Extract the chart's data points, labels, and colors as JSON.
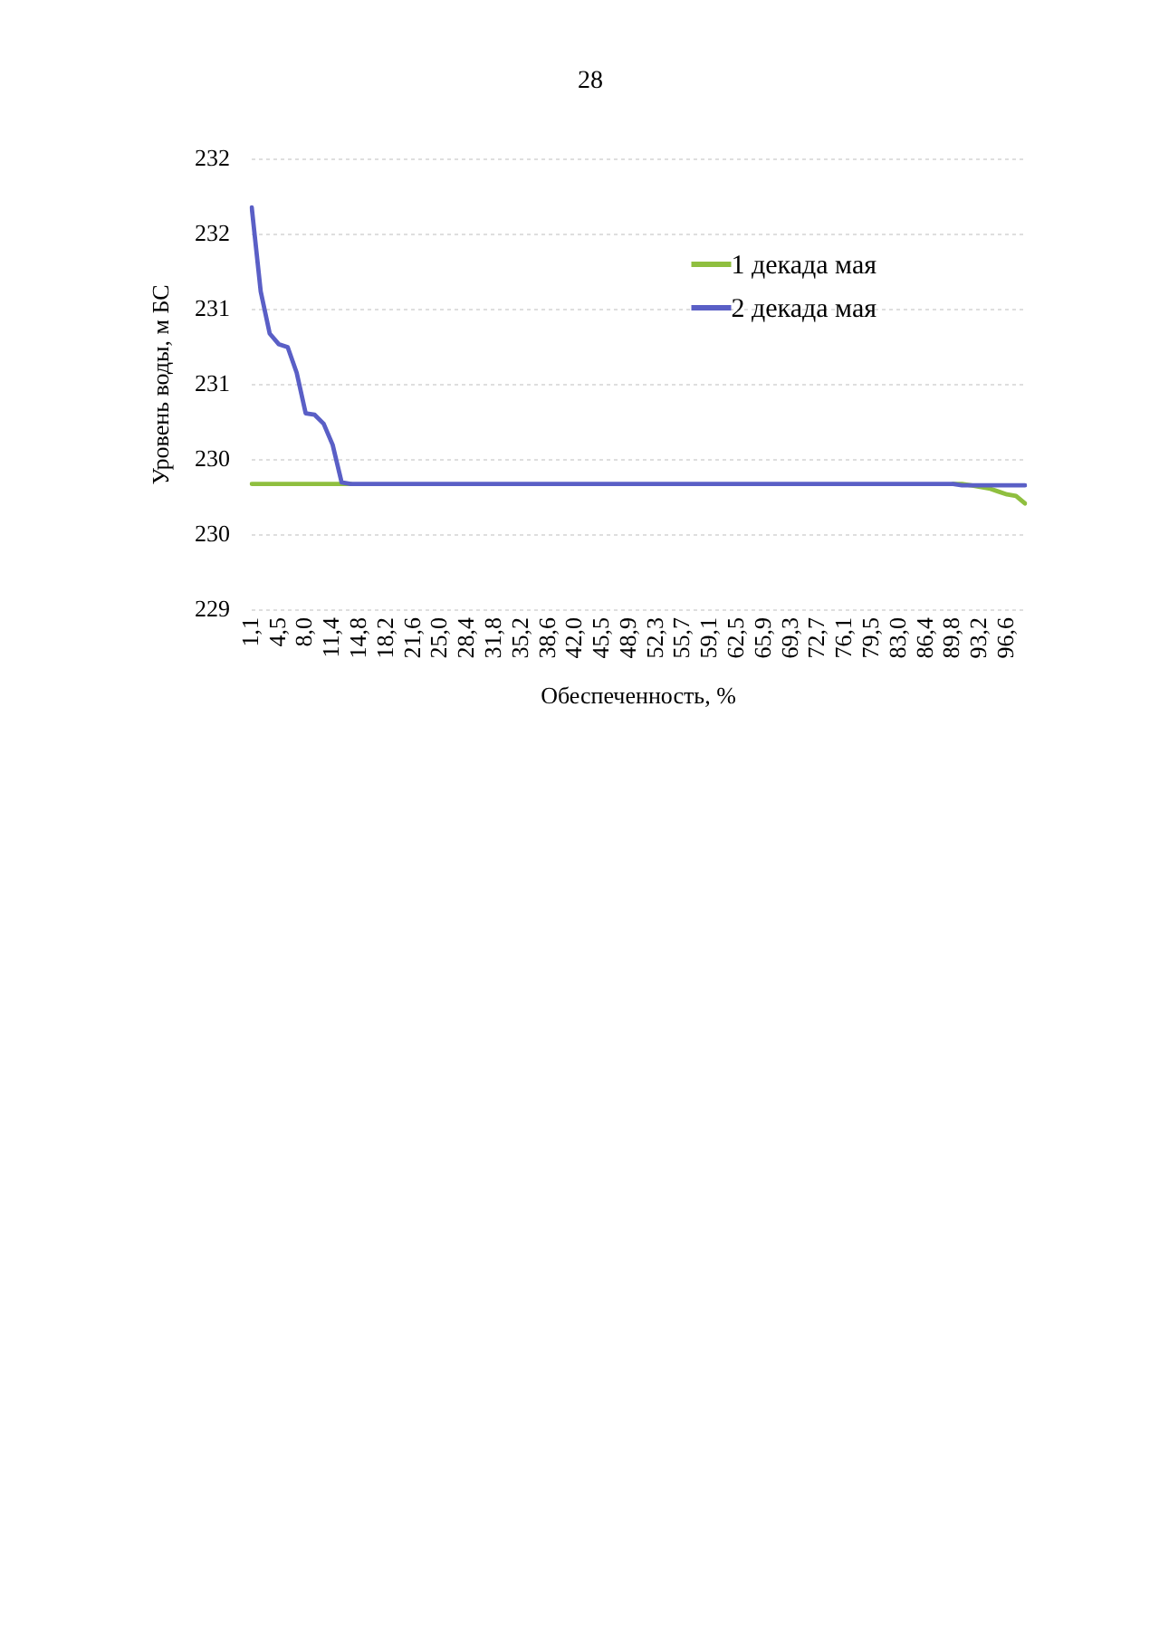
{
  "chart_data": {
    "type": "line",
    "annotations": [
      "28"
    ],
    "xlabel": "Обеспеченность, %",
    "ylabel": "Уровень воды, м БС",
    "categories": [
      "1,1",
      null,
      null,
      "4,5",
      null,
      null,
      "8,0",
      null,
      null,
      "11,4",
      null,
      null,
      "14,8",
      null,
      null,
      "18,2",
      null,
      null,
      "21,6",
      null,
      null,
      "25,0",
      null,
      null,
      "28,4",
      null,
      null,
      "31,8",
      null,
      null,
      "35,2",
      null,
      null,
      "38,6",
      null,
      null,
      "42,0",
      null,
      null,
      "45,5",
      null,
      null,
      "48,9",
      null,
      null,
      "52,3",
      null,
      null,
      "55,7",
      null,
      null,
      "59,1",
      null,
      null,
      "62,5",
      null,
      null,
      "65,9",
      null,
      null,
      "69,3",
      null,
      null,
      "72,7",
      null,
      null,
      "76,1",
      null,
      null,
      "79,5",
      null,
      null,
      "83,0",
      null,
      null,
      "86,4",
      null,
      null,
      "89,8",
      null,
      null,
      "93,2",
      null,
      null,
      "96,6",
      null,
      null
    ],
    "series": [
      {
        "name": "1 декада мая",
        "color": "#8fbf3f",
        "values": [
          229.84,
          229.84,
          229.84,
          229.84,
          229.84,
          229.84,
          229.84,
          229.84,
          229.84,
          229.84,
          229.84,
          229.84,
          null,
          null,
          null,
          null,
          null,
          null,
          null,
          null,
          null,
          null,
          null,
          null,
          null,
          null,
          null,
          null,
          null,
          null,
          null,
          null,
          null,
          null,
          null,
          null,
          null,
          null,
          null,
          null,
          null,
          null,
          null,
          null,
          null,
          null,
          null,
          null,
          null,
          null,
          null,
          null,
          null,
          null,
          null,
          null,
          null,
          null,
          null,
          null,
          null,
          null,
          null,
          null,
          null,
          null,
          null,
          null,
          null,
          null,
          null,
          null,
          null,
          null,
          null,
          null,
          null,
          null,
          229.84,
          229.84,
          229.83,
          229.82,
          229.81,
          229.79,
          229.77,
          229.76,
          229.71
        ]
      },
      {
        "name": "2 декада мая",
        "color": "#5a5fc6",
        "values": [
          231.68,
          231.12,
          230.84,
          230.77,
          230.75,
          230.58,
          230.31,
          230.3,
          230.24,
          230.1,
          229.85,
          229.84,
          229.84,
          229.84,
          229.84,
          229.84,
          229.84,
          229.84,
          229.84,
          229.84,
          229.84,
          229.84,
          229.84,
          229.84,
          229.84,
          229.84,
          229.84,
          229.84,
          229.84,
          229.84,
          229.84,
          229.84,
          229.84,
          229.84,
          229.84,
          229.84,
          229.84,
          229.84,
          229.84,
          229.84,
          229.84,
          229.84,
          229.84,
          229.84,
          229.84,
          229.84,
          229.84,
          229.84,
          229.84,
          229.84,
          229.84,
          229.84,
          229.84,
          229.84,
          229.84,
          229.84,
          229.84,
          229.84,
          229.84,
          229.84,
          229.84,
          229.84,
          229.84,
          229.84,
          229.84,
          229.84,
          229.84,
          229.84,
          229.84,
          229.84,
          229.84,
          229.84,
          229.84,
          229.84,
          229.84,
          229.84,
          229.84,
          229.84,
          229.84,
          229.83,
          229.83,
          229.83,
          229.83,
          229.83,
          229.83,
          229.83,
          229.83
        ]
      }
    ],
    "ylim": [
      229,
      232
    ],
    "yticks": [
      229,
      {
        "value": 229.5,
        "label": "230"
      },
      230,
      {
        "value": 230.5,
        "label": "231"
      },
      231,
      {
        "value": 231.5,
        "label": "232"
      },
      232
    ],
    "grid": "y",
    "legend": "top right"
  }
}
